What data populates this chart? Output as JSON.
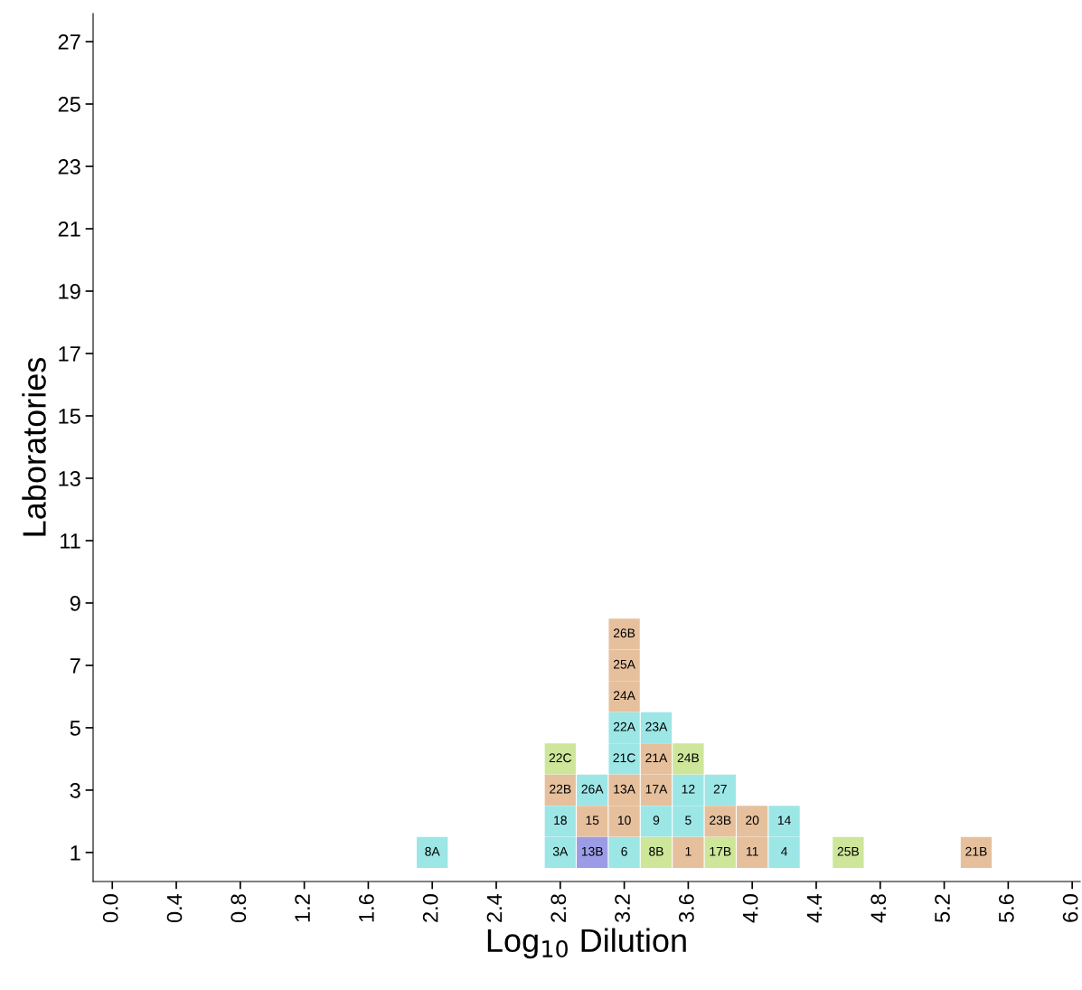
{
  "chart_data": {
    "type": "scatter",
    "xlabel": "Log$_{10}$ Dilution",
    "ylabel": "Laboratories",
    "marker": "square",
    "grid": false,
    "xlim": [
      -0.12,
      6.05
    ],
    "xticks": [
      {
        "value": 0,
        "label": "0.0"
      },
      0.4,
      0.8,
      1.2,
      1.6,
      {
        "value": 2,
        "label": "2.0"
      },
      2.4,
      2.8,
      3.2,
      3.6,
      {
        "value": 4,
        "label": "4.0"
      },
      4.4,
      4.8,
      5.2,
      5.6,
      {
        "value": 6,
        "label": "6.0"
      }
    ],
    "ylim": [
      0.07,
      27.9
    ],
    "yticks": [
      1,
      3,
      5,
      7,
      9,
      11,
      13,
      15,
      17,
      19,
      21,
      23,
      25,
      27
    ],
    "series": [
      {
        "color": "#9de6e6",
        "x": [
          2.0,
          2.8,
          2.8,
          3.0,
          3.2,
          3.2,
          3.2,
          3.4,
          3.4,
          3.6,
          3.6,
          3.8,
          4.2,
          4.2
        ],
        "values": [
          1,
          1,
          2,
          3,
          1,
          4,
          5,
          2,
          5,
          2,
          3,
          3,
          1,
          2
        ]
      },
      {
        "color": "#e6c09c",
        "x": [
          2.8,
          3.0,
          3.2,
          3.2,
          3.2,
          3.2,
          3.2,
          3.4,
          3.4,
          3.6,
          3.8,
          4.0,
          4.0,
          5.4
        ],
        "values": [
          3,
          2,
          2,
          3,
          6,
          7,
          8,
          3,
          4,
          1,
          2,
          1,
          2,
          1
        ]
      },
      {
        "color": "#cde69a",
        "x": [
          2.8,
          3.4,
          3.6,
          3.8,
          4.6
        ],
        "values": [
          4,
          1,
          4,
          1,
          1
        ]
      },
      {
        "color": "#9c9ce6",
        "x": [
          3.0
        ],
        "values": [
          1
        ]
      }
    ],
    "annotations": [
      {
        "text": "8A",
        "x": 2.0,
        "y": 1
      },
      {
        "text": "3A",
        "x": 2.8,
        "y": 1
      },
      {
        "text": "18",
        "x": 2.8,
        "y": 2
      },
      {
        "text": "26A",
        "x": 3.0,
        "y": 3
      },
      {
        "text": "6",
        "x": 3.2,
        "y": 1
      },
      {
        "text": "21C",
        "x": 3.2,
        "y": 4
      },
      {
        "text": "22A",
        "x": 3.2,
        "y": 5
      },
      {
        "text": "9",
        "x": 3.4,
        "y": 2
      },
      {
        "text": "23A",
        "x": 3.4,
        "y": 5
      },
      {
        "text": "5",
        "x": 3.6,
        "y": 2
      },
      {
        "text": "12",
        "x": 3.6,
        "y": 3
      },
      {
        "text": "27",
        "x": 3.8,
        "y": 3
      },
      {
        "text": "4",
        "x": 4.2,
        "y": 1
      },
      {
        "text": "14",
        "x": 4.2,
        "y": 2
      },
      {
        "text": "22B",
        "x": 2.8,
        "y": 3
      },
      {
        "text": "15",
        "x": 3.0,
        "y": 2
      },
      {
        "text": "10",
        "x": 3.2,
        "y": 2
      },
      {
        "text": "13A",
        "x": 3.2,
        "y": 3
      },
      {
        "text": "24A",
        "x": 3.2,
        "y": 6
      },
      {
        "text": "25A",
        "x": 3.2,
        "y": 7
      },
      {
        "text": "26B",
        "x": 3.2,
        "y": 8
      },
      {
        "text": "17A",
        "x": 3.4,
        "y": 3
      },
      {
        "text": "21A",
        "x": 3.4,
        "y": 4
      },
      {
        "text": "1",
        "x": 3.6,
        "y": 1
      },
      {
        "text": "23B",
        "x": 3.8,
        "y": 2
      },
      {
        "text": "11",
        "x": 4.0,
        "y": 1
      },
      {
        "text": "20",
        "x": 4.0,
        "y": 2
      },
      {
        "text": "21B",
        "x": 5.4,
        "y": 1
      },
      {
        "text": "22C",
        "x": 2.8,
        "y": 4
      },
      {
        "text": "8B",
        "x": 3.4,
        "y": 1
      },
      {
        "text": "24B",
        "x": 3.6,
        "y": 4
      },
      {
        "text": "17B",
        "x": 3.8,
        "y": 1
      },
      {
        "text": "25B",
        "x": 4.6,
        "y": 1
      },
      {
        "text": "13B",
        "x": 3.0,
        "y": 1
      }
    ]
  }
}
